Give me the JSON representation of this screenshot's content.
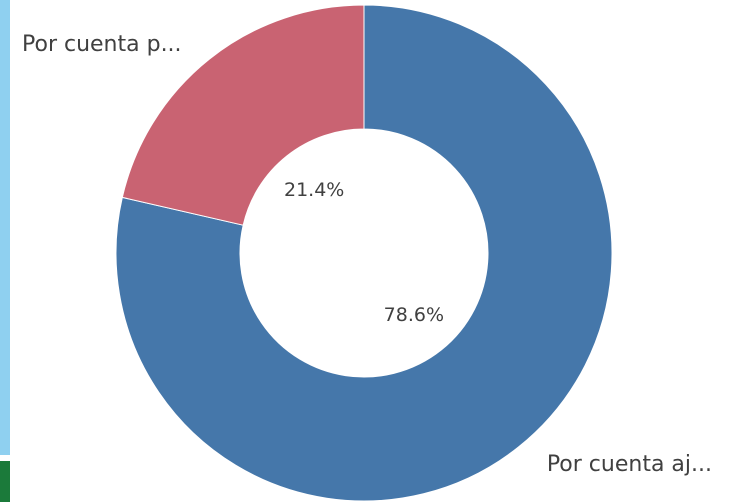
{
  "chart_data": {
    "type": "donut",
    "categories": [
      "Por cuenta aj...",
      "Por cuenta p..."
    ],
    "values": [
      78.6,
      21.4
    ],
    "value_labels": [
      "78.6%",
      "21.4%"
    ],
    "colors": [
      "#4577aa",
      "#c96372"
    ]
  }
}
